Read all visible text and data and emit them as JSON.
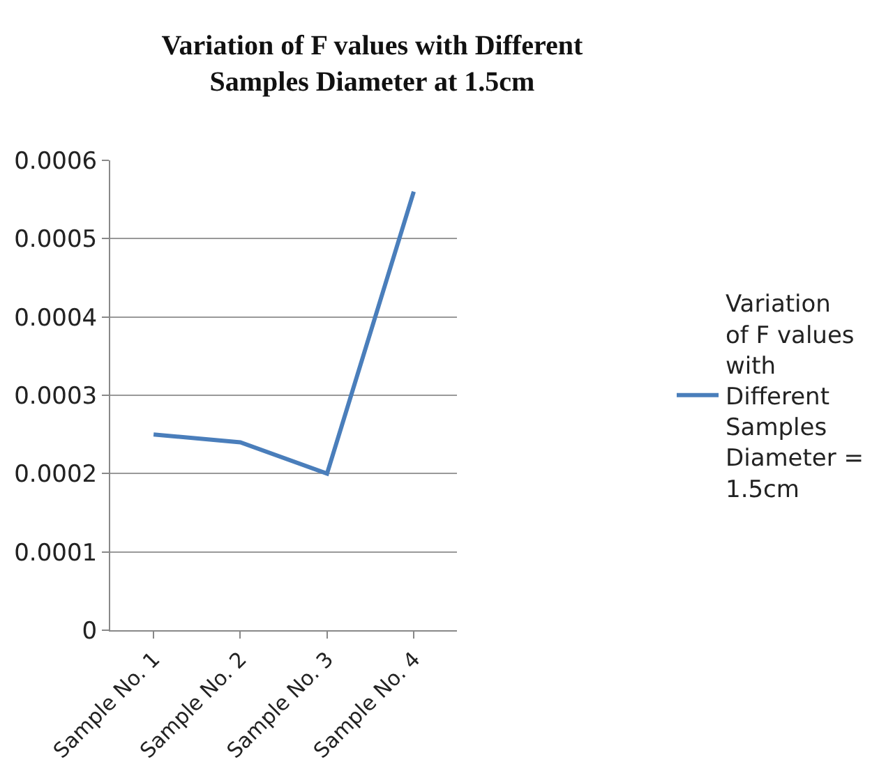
{
  "chart_data": {
    "type": "line",
    "title": "Variation of F values with Different Samples Diameter at 1.5cm",
    "categories": [
      "Sample No. 1",
      "Sample No. 2",
      "Sample No. 3",
      "Sample No. 4"
    ],
    "series": [
      {
        "name": "Variation of F values with Different Samples Diameter = 1.5cm",
        "color": "#4a7ebb",
        "values": [
          0.00025,
          0.00024,
          0.0002,
          0.00056
        ]
      }
    ],
    "ylim": [
      0,
      0.0006
    ],
    "yticks": [
      0,
      0.0001,
      0.0002,
      0.0003,
      0.0004,
      0.0005,
      0.0006
    ],
    "grid": "y",
    "legend": "right",
    "marker": "none",
    "line_style": "solid"
  }
}
